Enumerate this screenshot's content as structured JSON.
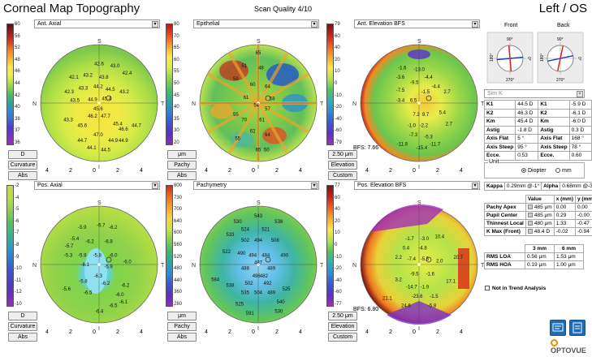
{
  "header": {
    "title": "Corneal Map Topography",
    "scan_quality": "Scan Quality 4/10",
    "eye": "Left / OS"
  },
  "scale_ticks": [
    "4",
    "2",
    "0",
    "2",
    "4"
  ],
  "compass": {
    "top": "S",
    "left": "N",
    "right": "T",
    "bottom": "I"
  },
  "panels": [
    {
      "key": "ant_axial",
      "title": "Ant. Axial",
      "scale": [
        "60",
        "",
        "56",
        "",
        "52",
        "",
        "48",
        "",
        "46",
        "",
        "44",
        "",
        "42",
        "",
        "40",
        "",
        "38",
        "",
        "37",
        "",
        "36"
      ],
      "buttons": [
        "D",
        "Curvature",
        "Abs"
      ],
      "bfs": "",
      "values": [
        [
          "42.6",
          0,
          -42
        ],
        [
          "43.0",
          17,
          -40
        ],
        [
          "42.4",
          30,
          -32
        ],
        [
          "42.1",
          -27,
          -28
        ],
        [
          "43.2",
          -12,
          -30
        ],
        [
          "43.8",
          5,
          -28
        ],
        [
          "42.3",
          -32,
          -12
        ],
        [
          "43.3",
          -17,
          -16
        ],
        [
          "44.2",
          -1,
          -18
        ],
        [
          "44.5",
          12,
          -15
        ],
        [
          "43.2",
          27,
          -12
        ],
        [
          "44.9",
          -7,
          -4
        ],
        [
          "45.4",
          8,
          -5
        ],
        [
          "43.5",
          -26,
          -3
        ],
        [
          "45.6",
          -1,
          6
        ],
        [
          "46.2",
          -7,
          14
        ],
        [
          "47.7",
          7,
          14
        ],
        [
          "43.3",
          -33,
          18
        ],
        [
          "45.6",
          -18,
          24
        ],
        [
          "45.4",
          20,
          22
        ],
        [
          "46.6",
          26,
          28
        ],
        [
          "47.0",
          -1,
          34
        ],
        [
          "44.9",
          15,
          40
        ],
        [
          "44.7",
          -18,
          40
        ],
        [
          "44.1",
          -8,
          48
        ],
        [
          "44.5",
          7,
          50
        ],
        [
          "44.7",
          40,
          24
        ],
        [
          "44.9",
          26,
          40
        ]
      ]
    },
    {
      "key": "epithelial",
      "title": "Epithelial",
      "scale": [
        "80",
        "",
        "70",
        "",
        "65",
        "",
        "60",
        "",
        "55",
        "",
        "50",
        "",
        "45",
        "",
        "40",
        "",
        "35",
        "",
        "30",
        "",
        "20"
      ],
      "buttons": [
        "μm",
        "Pachy",
        "Abs"
      ],
      "bfs": "",
      "values": [
        [
          "65",
          0,
          -54
        ],
        [
          "51",
          -15,
          -40
        ],
        [
          "48",
          3,
          -38
        ],
        [
          "59",
          -24,
          -26
        ],
        [
          "60",
          -6,
          -20
        ],
        [
          "64",
          10,
          -18
        ],
        [
          "61",
          -13,
          -6
        ],
        [
          "58",
          15,
          -5
        ],
        [
          "54",
          -2,
          2
        ],
        [
          "57",
          10,
          6
        ],
        [
          "55",
          -24,
          12
        ],
        [
          "70",
          -15,
          18
        ],
        [
          "61",
          4,
          18
        ],
        [
          "62",
          -6,
          30
        ],
        [
          "64",
          10,
          34
        ],
        [
          "55",
          -22,
          38
        ],
        [
          "65",
          0,
          50
        ],
        [
          "50",
          9,
          50
        ]
      ]
    },
    {
      "key": "ant_elevation",
      "title": "Ant. Elevation BFS",
      "scale": [
        "79",
        "",
        "60",
        "",
        "40",
        "",
        "20",
        "",
        "10",
        "",
        "0",
        "",
        "-10",
        "",
        "-20",
        "",
        "-40",
        "",
        "-60",
        "",
        "-79"
      ],
      "buttons": [
        "2.50 μm",
        "Elevation",
        "Custom"
      ],
      "bfs": "BFS: 7.66",
      "values": [
        [
          "-13.0",
          0,
          -36
        ],
        [
          "-1.6",
          -18,
          -38
        ],
        [
          "-3.6",
          -20,
          -28
        ],
        [
          "-4.4",
          10,
          -28
        ],
        [
          "-9.5",
          -5,
          -22
        ],
        [
          "-4.4",
          18,
          -18
        ],
        [
          "-7.5",
          -20,
          -14
        ],
        [
          "-1.5",
          7,
          -12
        ],
        [
          "2.7",
          30,
          -12
        ],
        [
          "-3.4",
          -20,
          -3
        ],
        [
          "6.5",
          -6,
          -3
        ],
        [
          "7.2",
          -3,
          12
        ],
        [
          "9.7",
          7,
          12
        ],
        [
          "5.4",
          25,
          10
        ],
        [
          "-1.0",
          -8,
          24
        ],
        [
          "-2.2",
          5,
          24
        ],
        [
          "2.7",
          32,
          22
        ],
        [
          "-7.3",
          -6,
          34
        ],
        [
          "-5.3",
          10,
          36
        ],
        [
          "-11.8",
          -18,
          44
        ],
        [
          "-15.4",
          3,
          48
        ],
        [
          "-11.7",
          17,
          44
        ]
      ]
    },
    {
      "key": "pos_axial",
      "title": "Pos. Axial",
      "scale": [
        "-2",
        "",
        "-4",
        "",
        "-5",
        "",
        "-6",
        "",
        "-7",
        "",
        "-8",
        "",
        "-9",
        "",
        "-10",
        "",
        "-11",
        "",
        "-12",
        "",
        "-10"
      ],
      "buttons": [
        "D",
        "Curvature",
        "Abs"
      ],
      "bfs": "",
      "values": [
        [
          "-6.7",
          2,
          -42
        ],
        [
          "-5.9",
          -18,
          -40
        ],
        [
          "-6.2",
          15,
          -40
        ],
        [
          "-5.4",
          -26,
          -28
        ],
        [
          "-5.7",
          -32,
          -20
        ],
        [
          "-6.2",
          -10,
          -25
        ],
        [
          "-6.8",
          10,
          -25
        ],
        [
          "-5.3",
          -33,
          -10
        ],
        [
          "-5.9",
          -18,
          -10
        ],
        [
          "-5.8",
          -2,
          -10
        ],
        [
          "-6.0",
          15,
          -10
        ],
        [
          "-6.0",
          30,
          -3
        ],
        [
          "-6.1",
          -15,
          0
        ],
        [
          "-5.9",
          10,
          2
        ],
        [
          "-6.3",
          -1,
          12
        ],
        [
          "-5.8",
          -17,
          18
        ],
        [
          "-6.2",
          7,
          20
        ],
        [
          "-5.6",
          -35,
          26
        ],
        [
          "-6.2",
          28,
          22
        ],
        [
          "-6.5",
          -12,
          30
        ],
        [
          "-6.0",
          22,
          32
        ],
        [
          "-6.5",
          15,
          44
        ],
        [
          "-6.4",
          0,
          50
        ],
        [
          "-6.1",
          26,
          40
        ]
      ]
    },
    {
      "key": "pachymetry",
      "title": "Pachymetry",
      "scale": [
        "800",
        "",
        "730",
        "",
        "700",
        "",
        "640",
        "",
        "600",
        "",
        "560",
        "",
        "520",
        "",
        "480",
        "",
        "440",
        "",
        "360",
        "",
        "280"
      ],
      "buttons": [
        "μm",
        "Pachy",
        "Abs"
      ],
      "bfs": "",
      "values": [
        [
          "543",
          0,
          -52
        ],
        [
          "530",
          -22,
          -46
        ],
        [
          "538",
          22,
          -46
        ],
        [
          "533",
          -30,
          -32
        ],
        [
          "524",
          -14,
          -38
        ],
        [
          "521",
          8,
          -38
        ],
        [
          "502",
          -14,
          -26
        ],
        [
          "494",
          0,
          -26
        ],
        [
          "508",
          18,
          -26
        ],
        [
          "522",
          -34,
          -14
        ],
        [
          "490",
          -18,
          -12
        ],
        [
          "494",
          -6,
          -10
        ],
        [
          "484",
          8,
          -10
        ],
        [
          "490",
          28,
          -10
        ],
        [
          "488",
          -14,
          4
        ],
        [
          "487",
          0,
          -2
        ],
        [
          "489",
          14,
          4
        ],
        [
          "496",
          -2,
          12
        ],
        [
          "482",
          6,
          12
        ],
        [
          "502",
          -10,
          20
        ],
        [
          "492",
          10,
          20
        ],
        [
          "538",
          -30,
          22
        ],
        [
          "535",
          -14,
          30
        ],
        [
          "504",
          0,
          30
        ],
        [
          "489",
          14,
          30
        ],
        [
          "525",
          30,
          26
        ],
        [
          "584",
          -46,
          16
        ],
        [
          "525",
          -20,
          42
        ],
        [
          "540",
          24,
          40
        ],
        [
          "591",
          -9,
          52
        ],
        [
          "530",
          22,
          50
        ]
      ]
    },
    {
      "key": "pos_elevation",
      "title": "Pos. Elevation BFS",
      "scale": [
        "77",
        "",
        "60",
        "",
        "40",
        "",
        "20",
        "",
        "10",
        "",
        "0",
        "",
        "-10",
        "",
        "-20",
        "",
        "-40",
        "",
        "-60",
        "",
        "-77"
      ],
      "buttons": [
        "2.50 μm",
        "Elevation",
        "Custom"
      ],
      "bfs": "BFS: 6.80",
      "values": [
        [
          "-1.7",
          -10,
          -28
        ],
        [
          "-3.0",
          6,
          -28
        ],
        [
          "10.4",
          22,
          -30
        ],
        [
          "0.4",
          -14,
          -18
        ],
        [
          "-4.8",
          4,
          -18
        ],
        [
          "2.2",
          -22,
          -8
        ],
        [
          "-7.4",
          -8,
          -6
        ],
        [
          "-5.5",
          6,
          -6
        ],
        [
          "2.0",
          22,
          -4
        ],
        [
          "20.7",
          42,
          -8
        ],
        [
          "-9.5",
          -5,
          10
        ],
        [
          "-1.6",
          12,
          10
        ],
        [
          "3.2",
          -22,
          16
        ],
        [
          "-14.7",
          -8,
          24
        ],
        [
          "-1.9",
          6,
          24
        ],
        [
          "17.1",
          34,
          18
        ],
        [
          "-23.6",
          -2,
          34
        ],
        [
          "-1.5",
          16,
          34
        ],
        [
          "21.1",
          -34,
          36
        ],
        [
          "24.6",
          -14,
          44
        ],
        [
          "-5.8",
          14,
          44
        ]
      ]
    }
  ],
  "side": {
    "front_label": "Front",
    "back_label": "Back",
    "front_deg": {
      "top": "90°",
      "left": "180°",
      "right": "0°",
      "bottom": "270°"
    },
    "back_deg": {
      "top": "90°",
      "left": "180°",
      "right": "0°",
      "bottom": "270°"
    },
    "sim_k": "Sim K",
    "k_rows": [
      [
        "K1",
        "44.5 D",
        "K1",
        "-5.9 D"
      ],
      [
        "K2",
        "46.3 D",
        "K2",
        "-6.1 D"
      ],
      [
        "Km",
        "45.4 D",
        "Km",
        "-6.0 D"
      ],
      [
        "Astig",
        "-1.8 D",
        "Astig",
        "0.3 D"
      ],
      [
        "Axis Flat",
        "5 °",
        "Axis Flat",
        "168 °"
      ],
      [
        "Axis Steep",
        "95 °",
        "Axis Steep",
        "78 °"
      ],
      [
        "Ecce.",
        "0.53",
        "Ecce.",
        "0.60"
      ]
    ],
    "unit": {
      "title": "Unit",
      "opt1": "Diopter",
      "opt2": "mm"
    },
    "kappa": {
      "kappa_label": "Kappa",
      "kappa_value": "0.29mm @-1°",
      "alpha_label": "Alpha",
      "alpha_value": "0.68mm @-37°"
    },
    "pt_head": [
      "",
      "Value",
      "x (mm)",
      "y (mm)"
    ],
    "pt_rows": [
      [
        "Pachy Apex",
        "485 μm",
        "0.00",
        "0.00"
      ],
      [
        "Pupil Center",
        "485 μm",
        "0.29",
        "-0.00"
      ],
      [
        "Thinnest Local",
        "480 μm",
        "1.33",
        "-0.47"
      ],
      [
        "K Max (Front)",
        "48.4 D",
        "-0.02",
        "-0.94"
      ]
    ],
    "rms_head": [
      "",
      "3 mm",
      "6 mm"
    ],
    "rms_rows": [
      [
        "RMS LOA",
        "0.56 μm",
        "1.53 μm"
      ],
      [
        "RMS HOA",
        "0.19 μm",
        "1.00 μm"
      ]
    ],
    "trend": "Not in Trend Analysis",
    "logo": "OPTOVUE"
  },
  "colors": {
    "accent": "#1e6bb8",
    "orange": "#f08c00"
  }
}
